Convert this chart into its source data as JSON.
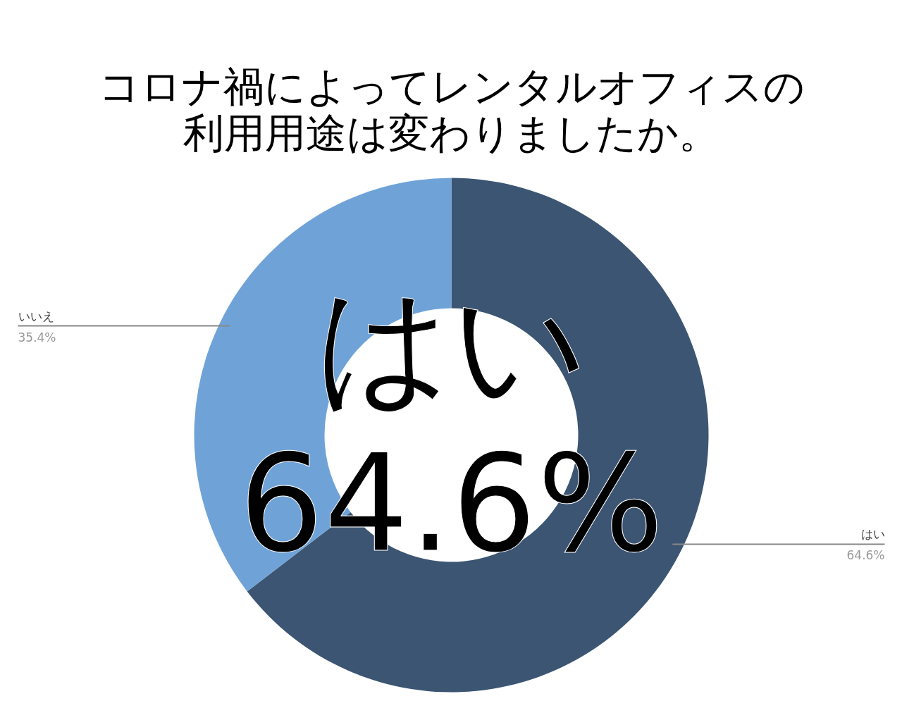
{
  "chart_data": {
    "type": "donut",
    "title": "コロナ禍によってレンタルオフィスの",
    "subtitle": "利用用途は変わりましたか。",
    "categories": [
      "はい",
      "いいえ"
    ],
    "values": [
      64.6,
      35.4
    ],
    "colors": [
      "#3b5573",
      "#6fa3d8"
    ],
    "value_labels": [
      "64.6%",
      "35.4%"
    ],
    "annotations": [
      "はい",
      "64.6%"
    ]
  }
}
